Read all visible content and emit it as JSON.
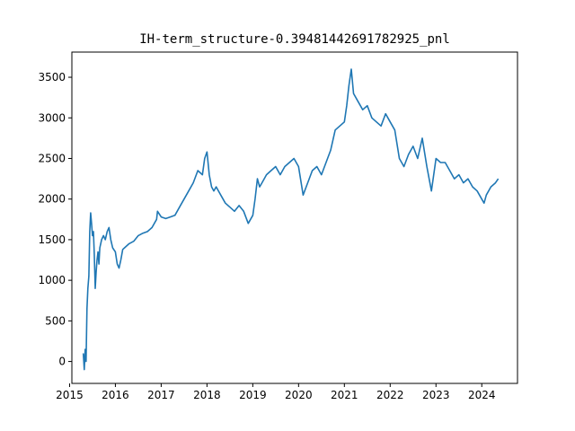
{
  "chart_data": {
    "type": "line",
    "title": "IH-term_structure-0.39481442691782925_pnl",
    "xlabel": "",
    "ylabel": "",
    "grid": false,
    "legend": "none",
    "xlim": [
      2015.05,
      2024.78
    ],
    "ylim": [
      -270,
      3810
    ],
    "xticks": [
      2015,
      2016,
      2017,
      2018,
      2019,
      2020,
      2021,
      2022,
      2023,
      2024
    ],
    "xtick_labels": [
      "2015",
      "2016",
      "2017",
      "2018",
      "2019",
      "2020",
      "2021",
      "2022",
      "2023",
      "2024"
    ],
    "yticks": [
      0,
      500,
      1000,
      1500,
      2000,
      2500,
      3000,
      3500
    ],
    "ytick_labels": [
      "0",
      "500",
      "1000",
      "1500",
      "2000",
      "2500",
      "3000",
      "3500"
    ],
    "series": [
      {
        "color": "#1f77b4",
        "x": [
          2015.3,
          2015.32,
          2015.34,
          2015.36,
          2015.38,
          2015.4,
          2015.42,
          2015.44,
          2015.46,
          2015.48,
          2015.5,
          2015.52,
          2015.54,
          2015.56,
          2015.58,
          2015.6,
          2015.62,
          2015.64,
          2015.66,
          2015.7,
          2015.74,
          2015.78,
          2015.82,
          2015.86,
          2015.9,
          2015.94,
          2016.0,
          2016.04,
          2016.08,
          2016.12,
          2016.16,
          2016.2,
          2016.3,
          2016.4,
          2016.5,
          2016.6,
          2016.7,
          2016.8,
          2016.9,
          2016.92,
          2017.0,
          2017.1,
          2017.2,
          2017.3,
          2017.4,
          2017.5,
          2017.6,
          2017.7,
          2017.8,
          2017.9,
          2017.95,
          2018.0,
          2018.05,
          2018.1,
          2018.15,
          2018.2,
          2018.3,
          2018.4,
          2018.5,
          2018.6,
          2018.7,
          2018.8,
          2018.9,
          2019.0,
          2019.05,
          2019.1,
          2019.15,
          2019.2,
          2019.3,
          2019.4,
          2019.5,
          2019.6,
          2019.7,
          2019.8,
          2019.9,
          2020.0,
          2020.1,
          2020.2,
          2020.3,
          2020.4,
          2020.5,
          2020.6,
          2020.7,
          2020.8,
          2020.9,
          2021.0,
          2021.05,
          2021.1,
          2021.15,
          2021.2,
          2021.3,
          2021.4,
          2021.5,
          2021.6,
          2021.7,
          2021.8,
          2021.9,
          2022.0,
          2022.1,
          2022.2,
          2022.3,
          2022.4,
          2022.5,
          2022.6,
          2022.7,
          2022.8,
          2022.9,
          2023.0,
          2023.1,
          2023.2,
          2023.3,
          2023.4,
          2023.5,
          2023.6,
          2023.7,
          2023.8,
          2023.9,
          2024.0,
          2024.05,
          2024.1,
          2024.2,
          2024.3,
          2024.36
        ],
        "y": [
          100,
          -100,
          150,
          0,
          650,
          900,
          1050,
          1600,
          1830,
          1700,
          1550,
          1600,
          1300,
          900,
          1100,
          1250,
          1350,
          1200,
          1400,
          1500,
          1550,
          1500,
          1600,
          1650,
          1500,
          1400,
          1350,
          1200,
          1150,
          1250,
          1380,
          1400,
          1450,
          1480,
          1550,
          1580,
          1600,
          1650,
          1750,
          1850,
          1780,
          1760,
          1780,
          1800,
          1900,
          2000,
          2100,
          2200,
          2350,
          2300,
          2500,
          2580,
          2300,
          2150,
          2100,
          2150,
          2050,
          1950,
          1900,
          1850,
          1920,
          1850,
          1700,
          1800,
          2000,
          2250,
          2150,
          2200,
          2300,
          2350,
          2400,
          2300,
          2400,
          2450,
          2500,
          2400,
          2050,
          2200,
          2350,
          2400,
          2300,
          2450,
          2600,
          2850,
          2900,
          2950,
          3150,
          3400,
          3600,
          3300,
          3200,
          3100,
          3150,
          3000,
          2950,
          2900,
          3050,
          2950,
          2850,
          2500,
          2400,
          2550,
          2650,
          2500,
          2750,
          2400,
          2100,
          2500,
          2450,
          2450,
          2350,
          2250,
          2300,
          2200,
          2250,
          2150,
          2100,
          2000,
          1950,
          2050,
          2150,
          2200,
          2250
        ]
      }
    ]
  }
}
